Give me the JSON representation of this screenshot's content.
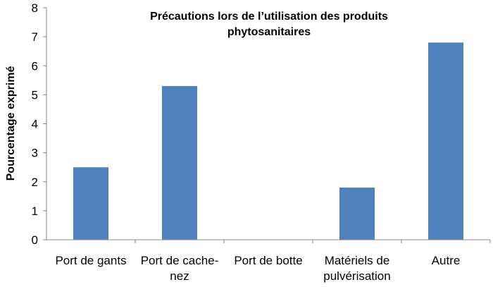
{
  "chart_data": {
    "type": "bar",
    "title_lines": [
      "Précautions lors de l’utilisation des produits",
      "phytosanitaires"
    ],
    "ylabel": "Pourcentage exprimé",
    "xlabel": "",
    "categories": [
      [
        "Port de gants"
      ],
      [
        "Port de cache-",
        "nez"
      ],
      [
        "Port de botte"
      ],
      [
        "Matériels de",
        "pulvérisation"
      ],
      [
        "Autre"
      ]
    ],
    "values": [
      2.5,
      5.3,
      0,
      1.8,
      6.8
    ],
    "ylim": [
      0,
      8
    ],
    "yticks": [
      "0",
      "1",
      "2",
      "3",
      "4",
      "5",
      "6",
      "7",
      "8"
    ],
    "grid": false,
    "legend": "none",
    "bar_color": "#4f81bd"
  }
}
